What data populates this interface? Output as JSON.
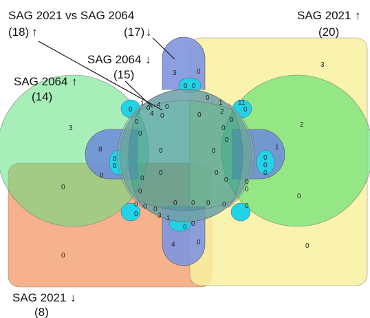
{
  "labels": {
    "sag2021_vs_2064": {
      "title": "SAG 2021 vs SAG 2064",
      "up_count": "(18)",
      "down_count": "(17)"
    },
    "sag2064_up": {
      "title": "SAG 2064",
      "count": "(14)"
    },
    "sag2064_down": {
      "title": "SAG 2064",
      "count": "(15)"
    },
    "sag2021_up": {
      "title": "SAG 2021",
      "count": "(20)"
    },
    "sag2021_down": {
      "title": "SAG 2021",
      "count": "(8)"
    }
  },
  "counts": [
    {
      "id": "c-top-lobe",
      "text": "3"
    },
    {
      "id": "c-top-lobe-2",
      "text": "0"
    },
    {
      "id": "c-top-s1",
      "text": "0"
    },
    {
      "id": "c-top-s2",
      "text": "0"
    },
    {
      "id": "c-yellow-top",
      "text": "3"
    },
    {
      "id": "c-left-big",
      "text": "3"
    },
    {
      "id": "c-right-big",
      "text": "2"
    },
    {
      "id": "c-left-8",
      "text": "8"
    },
    {
      "id": "c-left-0a",
      "text": "0"
    },
    {
      "id": "c-left-0b",
      "text": "0"
    },
    {
      "id": "c-left-0c",
      "text": "0"
    },
    {
      "id": "c-right-1",
      "text": "1"
    },
    {
      "id": "c-right-0a",
      "text": "0"
    },
    {
      "id": "c-right-0b",
      "text": "0"
    },
    {
      "id": "c-right-0c",
      "text": "0"
    },
    {
      "id": "c-ul-1",
      "text": "1"
    },
    {
      "id": "c-ul-4a",
      "text": "4"
    },
    {
      "id": "c-ul-0a",
      "text": "0"
    },
    {
      "id": "c-ul-0b",
      "text": "0"
    },
    {
      "id": "c-ul-4b",
      "text": "4"
    },
    {
      "id": "c-ul-0c",
      "text": "0"
    },
    {
      "id": "c-ur-0a",
      "text": "0"
    },
    {
      "id": "c-ur-1",
      "text": "1"
    },
    {
      "id": "c-ur-2",
      "text": "2"
    },
    {
      "id": "c-ur-11",
      "text": "11"
    },
    {
      "id": "c-ur-0b",
      "text": "0"
    },
    {
      "id": "c-ur-0c",
      "text": "0"
    },
    {
      "id": "c-ur-0d",
      "text": "0"
    },
    {
      "id": "c-in-0a",
      "text": "0"
    },
    {
      "id": "c-in-0b",
      "text": "0"
    },
    {
      "id": "c-in-0c",
      "text": "0"
    },
    {
      "id": "c-in-0d",
      "text": "0"
    },
    {
      "id": "c-in-0e",
      "text": "0"
    },
    {
      "id": "c-in-0f",
      "text": "0"
    },
    {
      "id": "c-in-0g",
      "text": "0"
    },
    {
      "id": "c-in-0h",
      "text": "0"
    },
    {
      "id": "c-in-0i",
      "text": "0"
    },
    {
      "id": "c-in-0j",
      "text": "0"
    },
    {
      "id": "c-in-0k",
      "text": "0"
    },
    {
      "id": "c-in-0l",
      "text": "0"
    },
    {
      "id": "c-lo-0a",
      "text": "0"
    },
    {
      "id": "c-lo-0b",
      "text": "0"
    },
    {
      "id": "c-lo-0c",
      "text": "0"
    },
    {
      "id": "c-lo-3",
      "text": "3"
    },
    {
      "id": "c-lo-0d",
      "text": "0"
    },
    {
      "id": "c-lo-1",
      "text": "1"
    },
    {
      "id": "c-lo-0e",
      "text": "0"
    },
    {
      "id": "c-lo-0f",
      "text": "0"
    },
    {
      "id": "c-lo-0g",
      "text": "0"
    },
    {
      "id": "c-lo-0h",
      "text": "0"
    },
    {
      "id": "c-bot-4",
      "text": "4"
    },
    {
      "id": "c-bot-0a",
      "text": "0"
    },
    {
      "id": "c-bot-0b",
      "text": "0"
    },
    {
      "id": "c-bot-0c",
      "text": "0"
    },
    {
      "id": "c-orange-left",
      "text": "0"
    },
    {
      "id": "c-orange-low",
      "text": "0"
    },
    {
      "id": "c-green-low",
      "text": "0"
    },
    {
      "id": "c-yellow-low",
      "text": "0"
    },
    {
      "id": "c-rl-0a",
      "text": "0"
    },
    {
      "id": "c-rl-0b",
      "text": "0"
    },
    {
      "id": "c-rl-0c",
      "text": "0"
    }
  ],
  "colors": {
    "orange": "#f5a478",
    "yellow": "#f8f1a0",
    "green": "#6fe07f",
    "teal": "#4aa89c",
    "blue": "#7f95e0",
    "cyan": "#22d3e8"
  }
}
